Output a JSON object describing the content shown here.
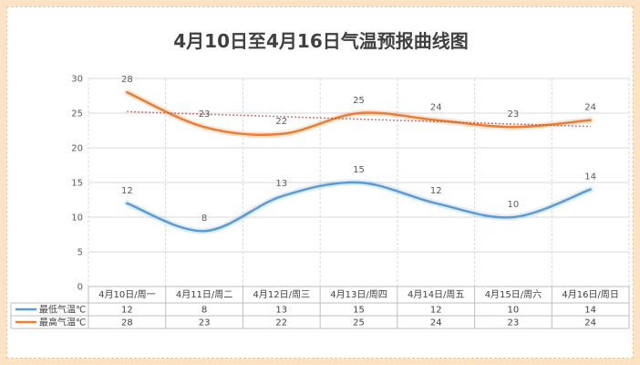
{
  "chart_data": {
    "type": "line",
    "title": "4月10日至4月16日气温预报曲线图",
    "categories": [
      "4月10日/周一",
      "4月11日/周二",
      "4月12日/周三",
      "4月13日/周四",
      "4月14日/周五",
      "4月15日/周六",
      "4月16日/周日"
    ],
    "series": [
      {
        "name": "最低气温℃",
        "values": [
          12,
          8,
          13,
          15,
          12,
          10,
          14
        ],
        "color": "#5b9bd5"
      },
      {
        "name": "最高气温℃",
        "values": [
          28,
          23,
          22,
          25,
          24,
          23,
          24
        ],
        "color": "#ed7d31"
      }
    ],
    "trendline": {
      "series": "最高气温℃",
      "type": "linear",
      "color": "#c0504d",
      "style": "dotted"
    },
    "ylim": [
      0,
      30
    ],
    "yticks": [
      "0",
      "5",
      "10",
      "15",
      "20",
      "25",
      "30"
    ],
    "grid": true,
    "smooth": true,
    "data_table": true,
    "xlabel": "",
    "ylabel": ""
  }
}
